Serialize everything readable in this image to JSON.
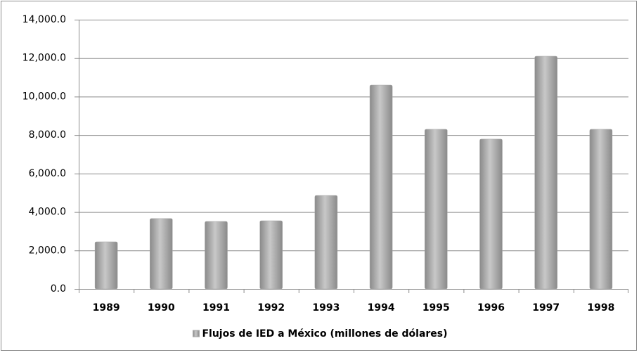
{
  "chart_data": {
    "type": "bar",
    "categories": [
      "1989",
      "1990",
      "1991",
      "1992",
      "1993",
      "1994",
      "1995",
      "1996",
      "1997",
      "1998"
    ],
    "series": [
      {
        "name": "Flujos de IED a México (millones de dólares)",
        "color": "#a6a6a6",
        "values": [
          2450,
          3660,
          3510,
          3545,
          4860,
          10600,
          8300,
          7790,
          12100,
          8300
        ]
      }
    ],
    "ylim": [
      0,
      14000
    ],
    "yticks": [
      {
        "value": 0,
        "label": "0.0"
      },
      {
        "value": 2000,
        "label": "2,000.0"
      },
      {
        "value": 4000,
        "label": "4,000.0"
      },
      {
        "value": 6000,
        "label": "6,000.0"
      },
      {
        "value": 8000,
        "label": "8,000.0"
      },
      {
        "value": 10000,
        "label": "10,000.0"
      },
      {
        "value": 12000,
        "label": "12,000.0"
      },
      {
        "value": 14000,
        "label": "14,000.0"
      }
    ],
    "grid": true,
    "legend": "bottom"
  }
}
